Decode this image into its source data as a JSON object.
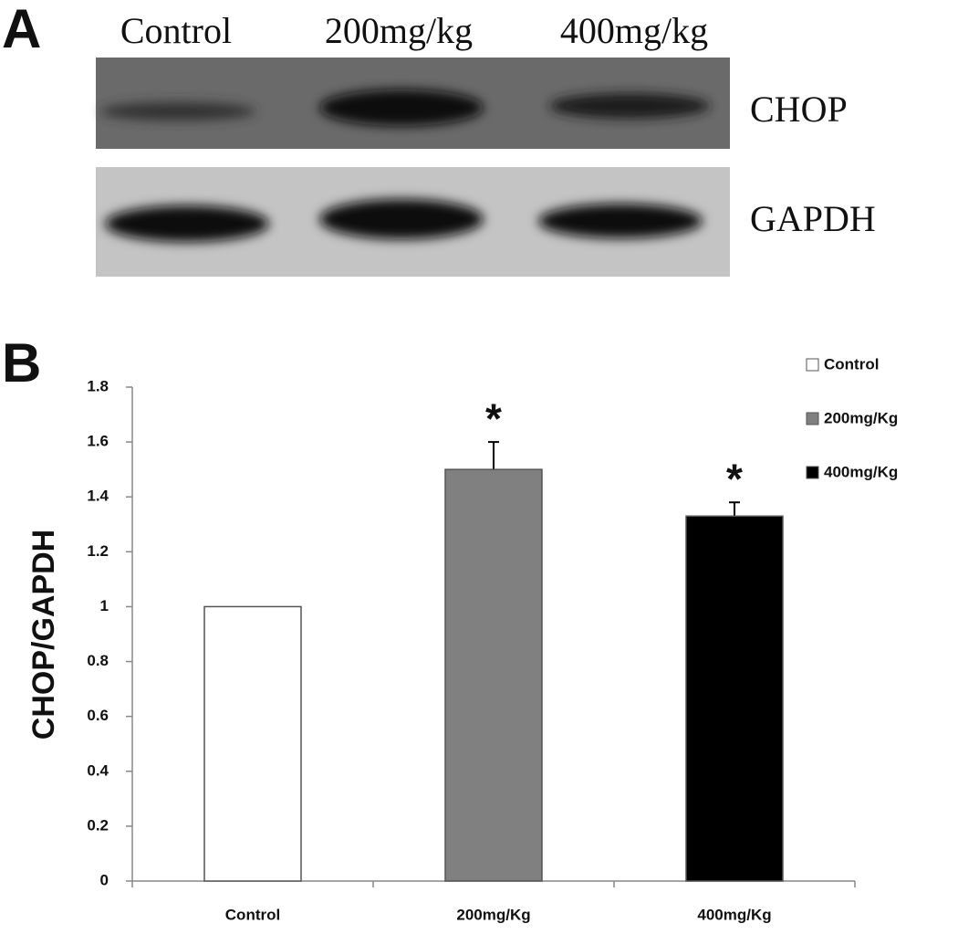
{
  "panel_a": {
    "label": "A",
    "lanes": [
      "Control",
      "200mg/kg",
      "400mg/kg"
    ],
    "bands": [
      "CHOP",
      "GAPDH"
    ]
  },
  "panel_b": {
    "label": "B"
  },
  "chart_data": {
    "type": "bar",
    "ylabel": "CHOP/GAPDH",
    "categories": [
      "Control",
      "200mg/Kg",
      "400mg/Kg"
    ],
    "values": [
      1.0,
      1.5,
      1.33
    ],
    "errors": [
      0,
      0.1,
      0.05
    ],
    "colors": [
      "#ffffff",
      "#808080",
      "#000000"
    ],
    "significance": [
      null,
      "*",
      "*"
    ],
    "ylim": [
      0,
      1.8
    ],
    "yticks": [
      0,
      0.2,
      0.4,
      0.6,
      0.8,
      1,
      1.2,
      1.4,
      1.6,
      1.8
    ],
    "legend": "top-right"
  }
}
